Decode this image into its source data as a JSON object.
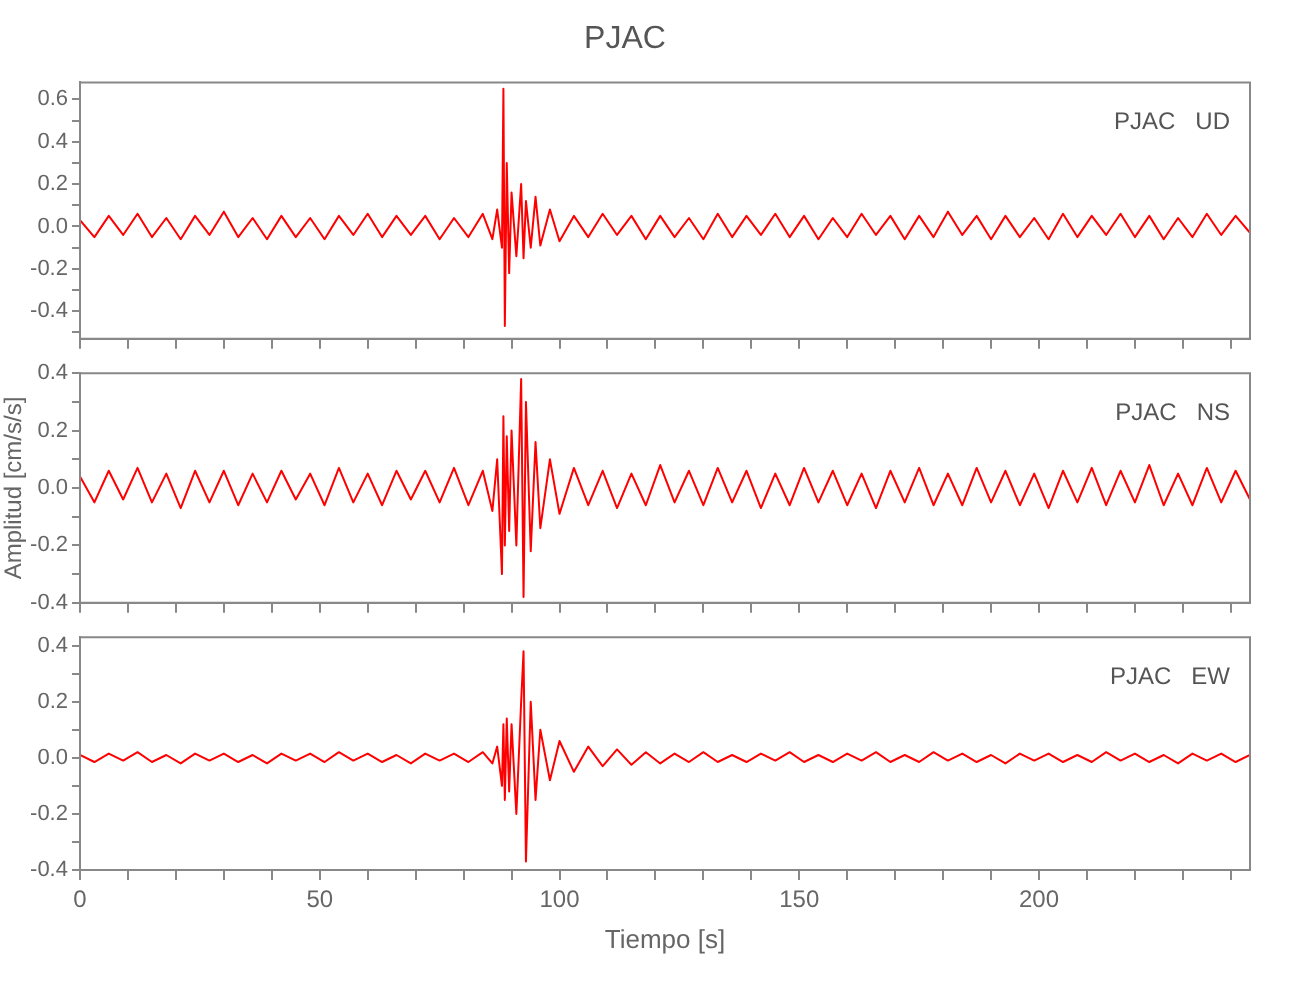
{
  "chart_data": [
    {
      "type": "line",
      "title": "PJAC",
      "annotations": [
        "PJAC   UD"
      ],
      "tick_labels": "y",
      "grid": false,
      "xlim": [
        0,
        244
      ],
      "ylim": [
        -0.53,
        0.68
      ],
      "xticks": [
        0,
        {
          "value": 10,
          "label": null
        },
        {
          "value": 20,
          "label": null
        },
        {
          "value": 30,
          "label": null
        },
        {
          "value": 40,
          "label": null
        },
        50,
        {
          "value": 60,
          "label": null
        },
        {
          "value": 70,
          "label": null
        },
        {
          "value": 80,
          "label": null
        },
        {
          "value": 90,
          "label": null
        },
        100,
        {
          "value": 110,
          "label": null
        },
        {
          "value": 120,
          "label": null
        },
        {
          "value": 130,
          "label": null
        },
        {
          "value": 140,
          "label": null
        },
        150,
        {
          "value": 160,
          "label": null
        },
        {
          "value": 170,
          "label": null
        },
        {
          "value": 180,
          "label": null
        },
        {
          "value": 190,
          "label": null
        },
        200,
        {
          "value": 210,
          "label": null
        },
        {
          "value": 220,
          "label": null
        },
        {
          "value": 230,
          "label": null
        },
        {
          "value": 240,
          "label": null
        }
      ],
      "yticks": [
        {
          "value": -0.5,
          "label": null
        },
        {
          "value": -0.4,
          "label": "-0.4"
        },
        {
          "value": -0.3,
          "label": null
        },
        {
          "value": -0.2,
          "label": "-0.2"
        },
        {
          "value": -0.1,
          "label": null
        },
        {
          "value": 0,
          "label": "0.0"
        },
        {
          "value": 0.1,
          "label": null
        },
        {
          "value": 0.2,
          "label": "0.2"
        },
        {
          "value": 0.3,
          "label": null
        },
        {
          "value": 0.4,
          "label": "0.4"
        },
        {
          "value": 0.5,
          "label": null
        },
        {
          "value": 0.6,
          "label": "0.6"
        }
      ],
      "x": [
        0,
        3,
        6,
        9,
        12,
        15,
        18,
        21,
        24,
        27,
        30,
        33,
        36,
        39,
        42,
        45,
        48,
        51,
        54,
        57,
        60,
        63,
        66,
        69,
        72,
        75,
        78,
        81,
        84,
        86,
        87,
        88,
        88.3,
        88.6,
        89,
        89.5,
        90,
        91,
        92,
        92.5,
        93,
        94,
        95,
        96,
        98,
        100,
        103,
        106,
        109,
        112,
        115,
        118,
        121,
        124,
        127,
        130,
        133,
        136,
        139,
        142,
        145,
        148,
        151,
        154,
        157,
        160,
        163,
        166,
        169,
        172,
        175,
        178,
        181,
        184,
        187,
        190,
        193,
        196,
        199,
        202,
        205,
        208,
        211,
        214,
        217,
        220,
        223,
        226,
        229,
        232,
        235,
        238,
        241,
        244
      ],
      "series": [
        {
          "color": "#ff0000",
          "values": [
            0.03,
            -0.05,
            0.05,
            -0.04,
            0.06,
            -0.05,
            0.04,
            -0.06,
            0.05,
            -0.04,
            0.07,
            -0.05,
            0.04,
            -0.06,
            0.05,
            -0.05,
            0.04,
            -0.06,
            0.05,
            -0.04,
            0.06,
            -0.05,
            0.05,
            -0.04,
            0.05,
            -0.06,
            0.04,
            -0.05,
            0.06,
            -0.06,
            0.08,
            -0.1,
            0.65,
            -0.47,
            0.3,
            -0.22,
            0.16,
            -0.14,
            0.2,
            -0.15,
            0.12,
            -0.1,
            0.14,
            -0.09,
            0.08,
            -0.07,
            0.05,
            -0.05,
            0.06,
            -0.04,
            0.05,
            -0.06,
            0.05,
            -0.05,
            0.04,
            -0.06,
            0.06,
            -0.05,
            0.05,
            -0.04,
            0.06,
            -0.05,
            0.05,
            -0.06,
            0.04,
            -0.05,
            0.06,
            -0.04,
            0.05,
            -0.06,
            0.05,
            -0.05,
            0.07,
            -0.04,
            0.05,
            -0.06,
            0.05,
            -0.05,
            0.04,
            -0.06,
            0.06,
            -0.05,
            0.05,
            -0.04,
            0.06,
            -0.05,
            0.05,
            -0.06,
            0.04,
            -0.05,
            0.06,
            -0.04,
            0.05,
            -0.03
          ]
        }
      ]
    },
    {
      "type": "line",
      "ylabel": "Amplitud [cm/s/s]",
      "annotations": [
        "PJAC   NS"
      ],
      "tick_labels": "y",
      "grid": false,
      "xlim": [
        0,
        244
      ],
      "ylim": [
        -0.4,
        0.4
      ],
      "xticks": [
        0,
        {
          "value": 10,
          "label": null
        },
        {
          "value": 20,
          "label": null
        },
        {
          "value": 30,
          "label": null
        },
        {
          "value": 40,
          "label": null
        },
        50,
        {
          "value": 60,
          "label": null
        },
        {
          "value": 70,
          "label": null
        },
        {
          "value": 80,
          "label": null
        },
        {
          "value": 90,
          "label": null
        },
        100,
        {
          "value": 110,
          "label": null
        },
        {
          "value": 120,
          "label": null
        },
        {
          "value": 130,
          "label": null
        },
        {
          "value": 140,
          "label": null
        },
        150,
        {
          "value": 160,
          "label": null
        },
        {
          "value": 170,
          "label": null
        },
        {
          "value": 180,
          "label": null
        },
        {
          "value": 190,
          "label": null
        },
        200,
        {
          "value": 210,
          "label": null
        },
        {
          "value": 220,
          "label": null
        },
        {
          "value": 230,
          "label": null
        },
        {
          "value": 240,
          "label": null
        }
      ],
      "yticks": [
        {
          "value": -0.4,
          "label": "-0.4"
        },
        {
          "value": -0.3,
          "label": null
        },
        {
          "value": -0.2,
          "label": "-0.2"
        },
        {
          "value": -0.1,
          "label": null
        },
        {
          "value": 0,
          "label": "0.0"
        },
        {
          "value": 0.1,
          "label": null
        },
        {
          "value": 0.2,
          "label": "0.2"
        },
        {
          "value": 0.3,
          "label": null
        },
        {
          "value": 0.4,
          "label": "0.4"
        }
      ],
      "x": [
        0,
        3,
        6,
        9,
        12,
        15,
        18,
        21,
        24,
        27,
        30,
        33,
        36,
        39,
        42,
        45,
        48,
        51,
        54,
        57,
        60,
        63,
        66,
        69,
        72,
        75,
        78,
        81,
        84,
        86,
        87,
        88,
        88.3,
        88.6,
        89,
        89.5,
        90,
        91,
        92,
        92.5,
        93,
        94,
        95,
        96,
        98,
        100,
        103,
        106,
        109,
        112,
        115,
        118,
        121,
        124,
        127,
        130,
        133,
        136,
        139,
        142,
        145,
        148,
        151,
        154,
        157,
        160,
        163,
        166,
        169,
        172,
        175,
        178,
        181,
        184,
        187,
        190,
        193,
        196,
        199,
        202,
        205,
        208,
        211,
        214,
        217,
        220,
        223,
        226,
        229,
        232,
        235,
        238,
        241,
        244
      ],
      "series": [
        {
          "color": "#ff0000",
          "values": [
            0.04,
            -0.05,
            0.06,
            -0.04,
            0.07,
            -0.05,
            0.05,
            -0.07,
            0.06,
            -0.05,
            0.06,
            -0.06,
            0.05,
            -0.05,
            0.06,
            -0.04,
            0.05,
            -0.06,
            0.07,
            -0.05,
            0.05,
            -0.06,
            0.06,
            -0.04,
            0.06,
            -0.05,
            0.07,
            -0.06,
            0.06,
            -0.08,
            0.1,
            -0.3,
            0.25,
            -0.2,
            0.18,
            -0.15,
            0.2,
            -0.2,
            0.38,
            -0.38,
            0.3,
            -0.22,
            0.16,
            -0.14,
            0.1,
            -0.09,
            0.07,
            -0.06,
            0.06,
            -0.07,
            0.05,
            -0.06,
            0.08,
            -0.05,
            0.06,
            -0.06,
            0.07,
            -0.05,
            0.06,
            -0.07,
            0.05,
            -0.06,
            0.07,
            -0.05,
            0.06,
            -0.06,
            0.05,
            -0.07,
            0.06,
            -0.05,
            0.07,
            -0.06,
            0.05,
            -0.06,
            0.07,
            -0.05,
            0.06,
            -0.06,
            0.05,
            -0.07,
            0.06,
            -0.05,
            0.07,
            -0.06,
            0.06,
            -0.05,
            0.08,
            -0.06,
            0.05,
            -0.06,
            0.07,
            -0.05,
            0.06,
            -0.04
          ]
        }
      ]
    },
    {
      "type": "line",
      "xlabel": "Tiempo [s]",
      "annotations": [
        "PJAC   EW"
      ],
      "grid": false,
      "xlim": [
        0,
        244
      ],
      "ylim": [
        -0.4,
        0.43
      ],
      "xticks": [
        0,
        {
          "value": 10,
          "label": null
        },
        {
          "value": 20,
          "label": null
        },
        {
          "value": 30,
          "label": null
        },
        {
          "value": 40,
          "label": null
        },
        50,
        {
          "value": 60,
          "label": null
        },
        {
          "value": 70,
          "label": null
        },
        {
          "value": 80,
          "label": null
        },
        {
          "value": 90,
          "label": null
        },
        100,
        {
          "value": 110,
          "label": null
        },
        {
          "value": 120,
          "label": null
        },
        {
          "value": 130,
          "label": null
        },
        {
          "value": 140,
          "label": null
        },
        150,
        {
          "value": 160,
          "label": null
        },
        {
          "value": 170,
          "label": null
        },
        {
          "value": 180,
          "label": null
        },
        {
          "value": 190,
          "label": null
        },
        200,
        {
          "value": 210,
          "label": null
        },
        {
          "value": 220,
          "label": null
        },
        {
          "value": 230,
          "label": null
        },
        {
          "value": 240,
          "label": null
        }
      ],
      "yticks": [
        {
          "value": -0.4,
          "label": "-0.4"
        },
        {
          "value": -0.3,
          "label": null
        },
        {
          "value": -0.2,
          "label": "-0.2"
        },
        {
          "value": -0.1,
          "label": null
        },
        {
          "value": 0,
          "label": "0.0"
        },
        {
          "value": 0.1,
          "label": null
        },
        {
          "value": 0.2,
          "label": "0.2"
        },
        {
          "value": 0.3,
          "label": null
        },
        {
          "value": 0.4,
          "label": "0.4"
        }
      ],
      "x": [
        0,
        3,
        6,
        9,
        12,
        15,
        18,
        21,
        24,
        27,
        30,
        33,
        36,
        39,
        42,
        45,
        48,
        51,
        54,
        57,
        60,
        63,
        66,
        69,
        72,
        75,
        78,
        81,
        84,
        86,
        87,
        88,
        88.3,
        88.6,
        89,
        89.5,
        90,
        91,
        92,
        92.5,
        93,
        94,
        95,
        96,
        98,
        100,
        103,
        106,
        109,
        112,
        115,
        118,
        121,
        124,
        127,
        130,
        133,
        136,
        139,
        142,
        145,
        148,
        151,
        154,
        157,
        160,
        163,
        166,
        169,
        172,
        175,
        178,
        181,
        184,
        187,
        190,
        193,
        196,
        199,
        202,
        205,
        208,
        211,
        214,
        217,
        220,
        223,
        226,
        229,
        232,
        235,
        238,
        241,
        244
      ],
      "series": [
        {
          "color": "#ff0000",
          "values": [
            0.01,
            -0.015,
            0.015,
            -0.01,
            0.02,
            -0.015,
            0.01,
            -0.02,
            0.015,
            -0.01,
            0.015,
            -0.015,
            0.01,
            -0.02,
            0.015,
            -0.01,
            0.015,
            -0.015,
            0.02,
            -0.01,
            0.015,
            -0.015,
            0.01,
            -0.02,
            0.015,
            -0.01,
            0.015,
            -0.015,
            0.02,
            -0.02,
            0.04,
            -0.1,
            0.12,
            -0.15,
            0.14,
            -0.12,
            0.12,
            -0.2,
            0.2,
            0.38,
            -0.37,
            0.2,
            -0.15,
            0.1,
            -0.08,
            0.06,
            -0.05,
            0.04,
            -0.03,
            0.03,
            -0.025,
            0.02,
            -0.02,
            0.015,
            -0.015,
            0.02,
            -0.015,
            0.01,
            -0.015,
            0.015,
            -0.01,
            0.02,
            -0.015,
            0.01,
            -0.015,
            0.015,
            -0.01,
            0.02,
            -0.015,
            0.01,
            -0.015,
            0.02,
            -0.01,
            0.015,
            -0.015,
            0.01,
            -0.02,
            0.015,
            -0.01,
            0.015,
            -0.015,
            0.01,
            -0.015,
            0.02,
            -0.01,
            0.015,
            -0.015,
            0.01,
            -0.02,
            0.015,
            -0.01,
            0.015,
            -0.015,
            0.01
          ]
        }
      ]
    }
  ]
}
